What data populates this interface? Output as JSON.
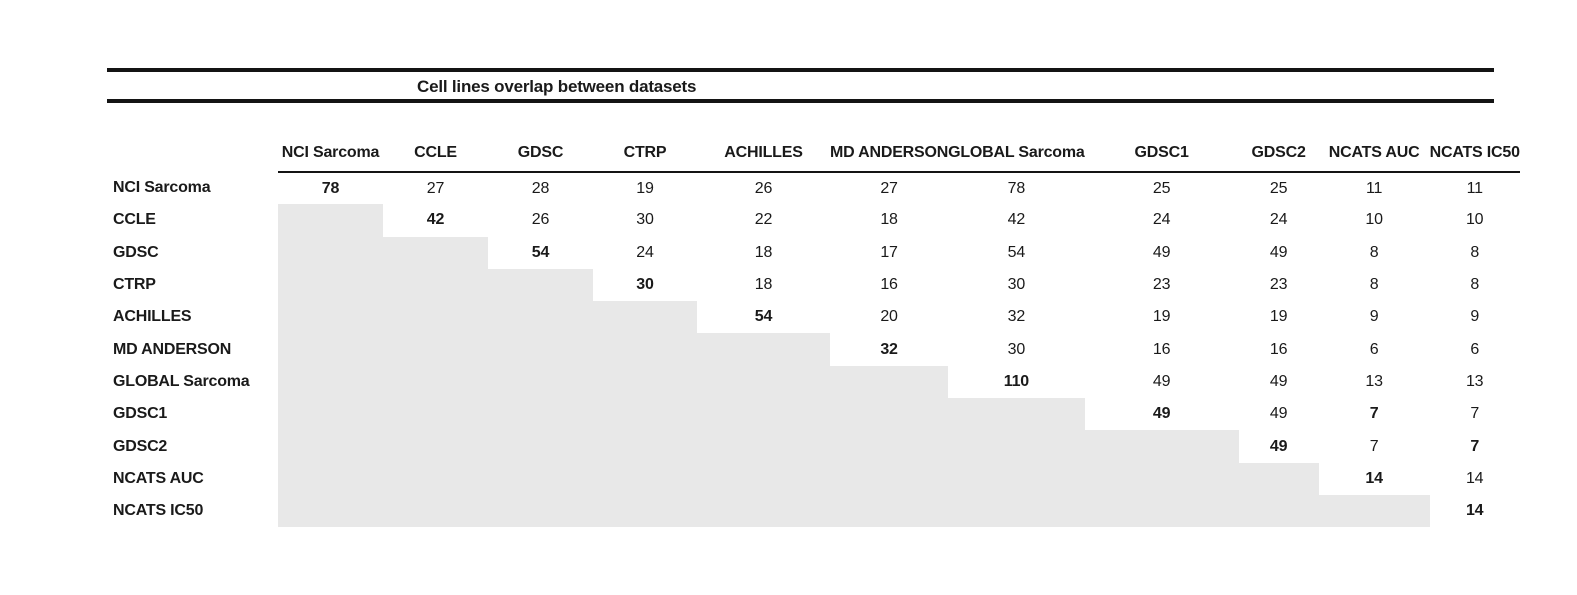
{
  "title": "Cell lines overlap between datasets",
  "table": {
    "datasets": [
      "NCI Sarcoma",
      "CCLE",
      "GDSC",
      "CTRP",
      "ACHILLES",
      "MD ANDERSON",
      "GLOBAL Sarcoma",
      "GDSC1",
      "GDSC2",
      "NCATS AUC",
      "NCATS IC50"
    ],
    "matrix": [
      [
        78,
        27,
        28,
        19,
        26,
        27,
        78,
        25,
        25,
        11,
        11
      ],
      [
        null,
        42,
        26,
        30,
        22,
        18,
        42,
        24,
        24,
        10,
        10
      ],
      [
        null,
        null,
        54,
        24,
        18,
        17,
        54,
        49,
        49,
        8,
        8
      ],
      [
        null,
        null,
        null,
        30,
        18,
        16,
        30,
        23,
        23,
        8,
        8
      ],
      [
        null,
        null,
        null,
        null,
        54,
        20,
        32,
        19,
        19,
        9,
        9
      ],
      [
        null,
        null,
        null,
        null,
        null,
        32,
        30,
        16,
        16,
        6,
        6
      ],
      [
        null,
        null,
        null,
        null,
        null,
        null,
        110,
        49,
        49,
        13,
        13
      ],
      [
        null,
        null,
        null,
        null,
        null,
        null,
        null,
        49,
        49,
        7,
        7
      ],
      [
        null,
        null,
        null,
        null,
        null,
        null,
        null,
        null,
        49,
        7,
        7
      ],
      [
        null,
        null,
        null,
        null,
        null,
        null,
        null,
        null,
        null,
        14,
        14
      ],
      [
        null,
        null,
        null,
        null,
        null,
        null,
        null,
        null,
        null,
        null,
        14
      ]
    ],
    "bold_diagonal": true,
    "bold_extra_cells": [
      {
        "row": "GDSC1",
        "col": "NCATS AUC"
      },
      {
        "row": "GDSC2",
        "col": "NCATS IC50"
      }
    ]
  },
  "colors": {
    "shade_below_diagonal": "#e8e8e8",
    "rule": "#141414",
    "text": "#1a1a1a"
  },
  "chart_data": {
    "type": "table",
    "title": "Cell lines overlap between datasets",
    "row_labels": [
      "NCI Sarcoma",
      "CCLE",
      "GDSC",
      "CTRP",
      "ACHILLES",
      "MD ANDERSON",
      "GLOBAL Sarcoma",
      "GDSC1",
      "GDSC2",
      "NCATS AUC",
      "NCATS IC50"
    ],
    "col_labels": [
      "NCI Sarcoma",
      "CCLE",
      "GDSC",
      "CTRP",
      "ACHILLES",
      "MD ANDERSON",
      "GLOBAL Sarcoma",
      "GDSC1",
      "GDSC2",
      "NCATS AUC",
      "NCATS IC50"
    ],
    "matrix": [
      [
        78,
        27,
        28,
        19,
        26,
        27,
        78,
        25,
        25,
        11,
        11
      ],
      [
        null,
        42,
        26,
        30,
        22,
        18,
        42,
        24,
        24,
        10,
        10
      ],
      [
        null,
        null,
        54,
        24,
        18,
        17,
        54,
        49,
        49,
        8,
        8
      ],
      [
        null,
        null,
        null,
        30,
        18,
        16,
        30,
        23,
        23,
        8,
        8
      ],
      [
        null,
        null,
        null,
        null,
        54,
        20,
        32,
        19,
        19,
        9,
        9
      ],
      [
        null,
        null,
        null,
        null,
        null,
        32,
        30,
        16,
        16,
        6,
        6
      ],
      [
        null,
        null,
        null,
        null,
        null,
        null,
        110,
        49,
        49,
        13,
        13
      ],
      [
        null,
        null,
        null,
        null,
        null,
        null,
        null,
        49,
        49,
        7,
        7
      ],
      [
        null,
        null,
        null,
        null,
        null,
        null,
        null,
        null,
        49,
        7,
        7
      ],
      [
        null,
        null,
        null,
        null,
        null,
        null,
        null,
        null,
        null,
        14,
        14
      ],
      [
        null,
        null,
        null,
        null,
        null,
        null,
        null,
        null,
        null,
        null,
        14
      ]
    ]
  }
}
